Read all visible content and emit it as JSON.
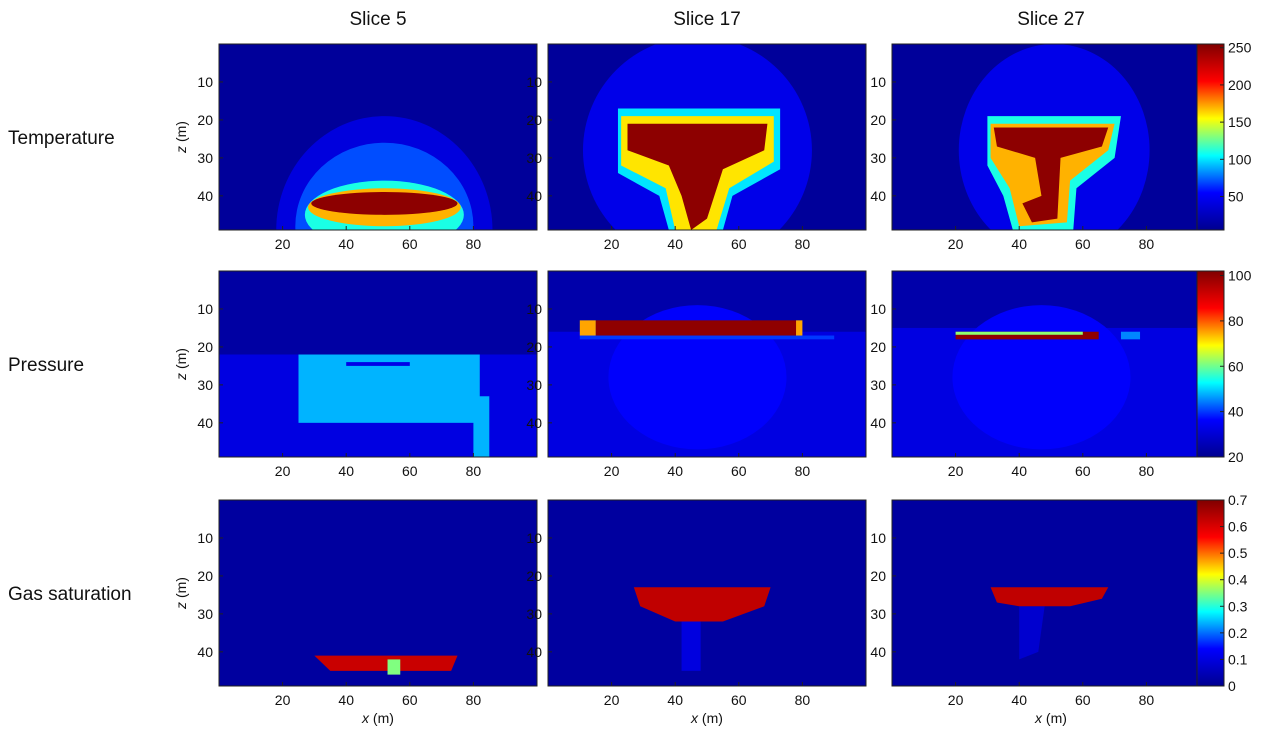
{
  "chart_data": {
    "type": "heatmap",
    "columns": [
      {
        "title": "Slice 5",
        "index": 5
      },
      {
        "title": "Slice 17",
        "index": 17
      },
      {
        "title": "Slice 27",
        "index": 27
      }
    ],
    "rows": [
      {
        "label": "Temperature",
        "colorbar": {
          "min": 5,
          "max": 255,
          "ticks": [
            50,
            100,
            150,
            200,
            250
          ]
        }
      },
      {
        "label": "Pressure",
        "colorbar": {
          "min": 20,
          "max": 102,
          "ticks": [
            20,
            40,
            60,
            80,
            100
          ]
        }
      },
      {
        "label": "Gas saturation",
        "colorbar": {
          "min": 0,
          "max": 0.7,
          "ticks": [
            "0",
            "0.1",
            "0.2",
            "0.3",
            "0.4",
            "0.5",
            "0.6",
            "0.7"
          ]
        }
      }
    ],
    "xlim": [
      0,
      100
    ],
    "zlim": [
      0,
      49
    ],
    "xticks": [
      20,
      40,
      60,
      80
    ],
    "zticks": [
      10,
      20,
      30,
      40
    ],
    "xlabel_var": "x",
    "xlabel_unit": " (m)",
    "zlabel_var": "z",
    "zlabel_unit": " (m)",
    "colormap": [
      "#00008f",
      "#0000ff",
      "#00ffff",
      "#ffff00",
      "#ff0000",
      "#800000"
    ],
    "panels": [
      [
        {
          "background": 10,
          "regions": [
            {
              "shape": "ellipse",
              "cx": 52,
              "cy": 49,
              "rx": 34,
              "ry": 30,
              "value": 40
            },
            {
              "shape": "ellipse",
              "cx": 52,
              "cy": 48,
              "rx": 28,
              "ry": 22,
              "value": 70
            },
            {
              "shape": "ellipse",
              "cx": 52,
              "cy": 45,
              "rx": 25,
              "ry": 9,
              "value": 110
            },
            {
              "shape": "ellipse",
              "cx": 52,
              "cy": 43,
              "rx": 24,
              "ry": 5,
              "value": 170
            },
            {
              "shape": "ellipse",
              "cx": 52,
              "cy": 42,
              "rx": 23,
              "ry": 3,
              "value": 250
            }
          ]
        },
        {
          "background": 10,
          "regions": [
            {
              "shape": "ellipse",
              "cx": 47,
              "cy": 28,
              "rx": 36,
              "ry": 30,
              "value": 45
            },
            {
              "shape": "poly",
              "value": 100,
              "points": [
                [
                  22,
                  17
                ],
                [
                  73,
                  17
                ],
                [
                  73,
                  33
                ],
                [
                  58,
                  40
                ],
                [
                  55,
                  49
                ],
                [
                  38,
                  49
                ],
                [
                  35,
                  40
                ],
                [
                  22,
                  34
                ]
              ]
            },
            {
              "shape": "poly",
              "value": 160,
              "points": [
                [
                  23,
                  19
                ],
                [
                  71,
                  19
                ],
                [
                  71,
                  31
                ],
                [
                  57,
                  38
                ],
                [
                  53,
                  49
                ],
                [
                  40,
                  49
                ],
                [
                  37,
                  38
                ],
                [
                  23,
                  32
                ]
              ]
            },
            {
              "shape": "poly",
              "value": 250,
              "points": [
                [
                  25,
                  21
                ],
                [
                  69,
                  21
                ],
                [
                  68,
                  28
                ],
                [
                  55,
                  33
                ],
                [
                  50,
                  46
                ],
                [
                  45,
                  49
                ],
                [
                  42,
                  40
                ],
                [
                  38,
                  32
                ],
                [
                  25,
                  28
                ]
              ]
            }
          ]
        },
        {
          "background": 10,
          "regions": [
            {
              "shape": "ellipse",
              "cx": 51,
              "cy": 28,
              "rx": 30,
              "ry": 28,
              "value": 45
            },
            {
              "shape": "poly",
              "value": 110,
              "points": [
                [
                  30,
                  19
                ],
                [
                  72,
                  19
                ],
                [
                  70,
                  30
                ],
                [
                  58,
                  38
                ],
                [
                  57,
                  49
                ],
                [
                  38,
                  49
                ],
                [
                  35,
                  40
                ],
                [
                  30,
                  32
                ]
              ]
            },
            {
              "shape": "poly",
              "value": 170,
              "points": [
                [
                  31,
                  21
                ],
                [
                  70,
                  21
                ],
                [
                  68,
                  28
                ],
                [
                  56,
                  36
                ],
                [
                  55,
                  47
                ],
                [
                  40,
                  48
                ],
                [
                  37,
                  38
                ],
                [
                  31,
                  30
                ]
              ]
            },
            {
              "shape": "poly",
              "value": 250,
              "points": [
                [
                  32,
                  22
                ],
                [
                  68,
                  22
                ],
                [
                  66,
                  27
                ],
                [
                  53,
                  30
                ],
                [
                  52,
                  46
                ],
                [
                  44,
                  47
                ],
                [
                  41,
                  42
                ],
                [
                  47,
                  40
                ],
                [
                  45,
                  30
                ],
                [
                  33,
                  27
                ]
              ]
            }
          ]
        }
      ],
      [
        {
          "background": 23,
          "regions": [
            {
              "shape": "rect",
              "x0": 0,
              "x1": 100,
              "y0": 22,
              "y1": 49,
              "value": 32
            },
            {
              "shape": "rect",
              "x0": 25,
              "x1": 82,
              "y0": 22,
              "y1": 40,
              "value": 48
            },
            {
              "shape": "rect",
              "x0": 80,
              "x1": 85,
              "y0": 33,
              "y1": 49,
              "value": 48
            },
            {
              "shape": "rect",
              "x0": 40,
              "x1": 60,
              "y0": 24,
              "y1": 25,
              "value": 33
            }
          ]
        },
        {
          "background": 24,
          "regions": [
            {
              "shape": "rect",
              "x0": 0,
              "x1": 100,
              "y0": 16,
              "y1": 49,
              "value": 32
            },
            {
              "shape": "ellipse",
              "cx": 47,
              "cy": 28,
              "rx": 28,
              "ry": 19,
              "value": 36
            },
            {
              "shape": "rect",
              "x0": 10,
              "x1": 90,
              "y0": 17,
              "y1": 18,
              "value": 40
            },
            {
              "shape": "rect",
              "x0": 15,
              "x1": 78,
              "y0": 13,
              "y1": 17,
              "value": 100
            },
            {
              "shape": "rect",
              "x0": 10,
              "x1": 15,
              "y0": 13,
              "y1": 17,
              "value": 75
            },
            {
              "shape": "rect",
              "x0": 78,
              "x1": 80,
              "y0": 13,
              "y1": 17,
              "value": 75
            }
          ]
        },
        {
          "background": 24,
          "regions": [
            {
              "shape": "rect",
              "x0": 0,
              "x1": 100,
              "y0": 15,
              "y1": 49,
              "value": 32
            },
            {
              "shape": "ellipse",
              "cx": 47,
              "cy": 28,
              "rx": 28,
              "ry": 19,
              "value": 36
            },
            {
              "shape": "rect",
              "x0": 20,
              "x1": 65,
              "y0": 16,
              "y1": 18,
              "value": 100
            },
            {
              "shape": "rect",
              "x0": 20,
              "x1": 60,
              "y0": 16,
              "y1": 16.8,
              "value": 62
            },
            {
              "shape": "rect",
              "x0": 72,
              "x1": 78,
              "y0": 16,
              "y1": 18,
              "value": 45
            }
          ]
        }
      ],
      [
        {
          "background": 0.02,
          "regions": [
            {
              "shape": "poly",
              "value": 0.62,
              "points": [
                [
                  30,
                  41
                ],
                [
                  75,
                  41
                ],
                [
                  73,
                  45
                ],
                [
                  35,
                  45
                ]
              ]
            },
            {
              "shape": "rect",
              "x0": 53,
              "x1": 57,
              "y0": 42,
              "y1": 46,
              "value": 0.35
            }
          ]
        },
        {
          "background": 0.02,
          "regions": [
            {
              "shape": "rect",
              "x0": 42,
              "x1": 48,
              "y0": 32,
              "y1": 45,
              "value": 0.1
            },
            {
              "shape": "poly",
              "value": 0.63,
              "points": [
                [
                  27,
                  23
                ],
                [
                  70,
                  23
                ],
                [
                  68,
                  28
                ],
                [
                  55,
                  32
                ],
                [
                  40,
                  32
                ],
                [
                  29,
                  28
                ]
              ]
            }
          ]
        },
        {
          "background": 0.02,
          "regions": [
            {
              "shape": "poly",
              "value": 0.08,
              "points": [
                [
                  40,
                  28
                ],
                [
                  48,
                  28
                ],
                [
                  46,
                  40
                ],
                [
                  40,
                  42
                ]
              ]
            },
            {
              "shape": "poly",
              "value": 0.63,
              "points": [
                [
                  31,
                  23
                ],
                [
                  68,
                  23
                ],
                [
                  66,
                  26
                ],
                [
                  56,
                  28
                ],
                [
                  40,
                  28
                ],
                [
                  33,
                  27
                ]
              ]
            }
          ]
        }
      ]
    ]
  }
}
